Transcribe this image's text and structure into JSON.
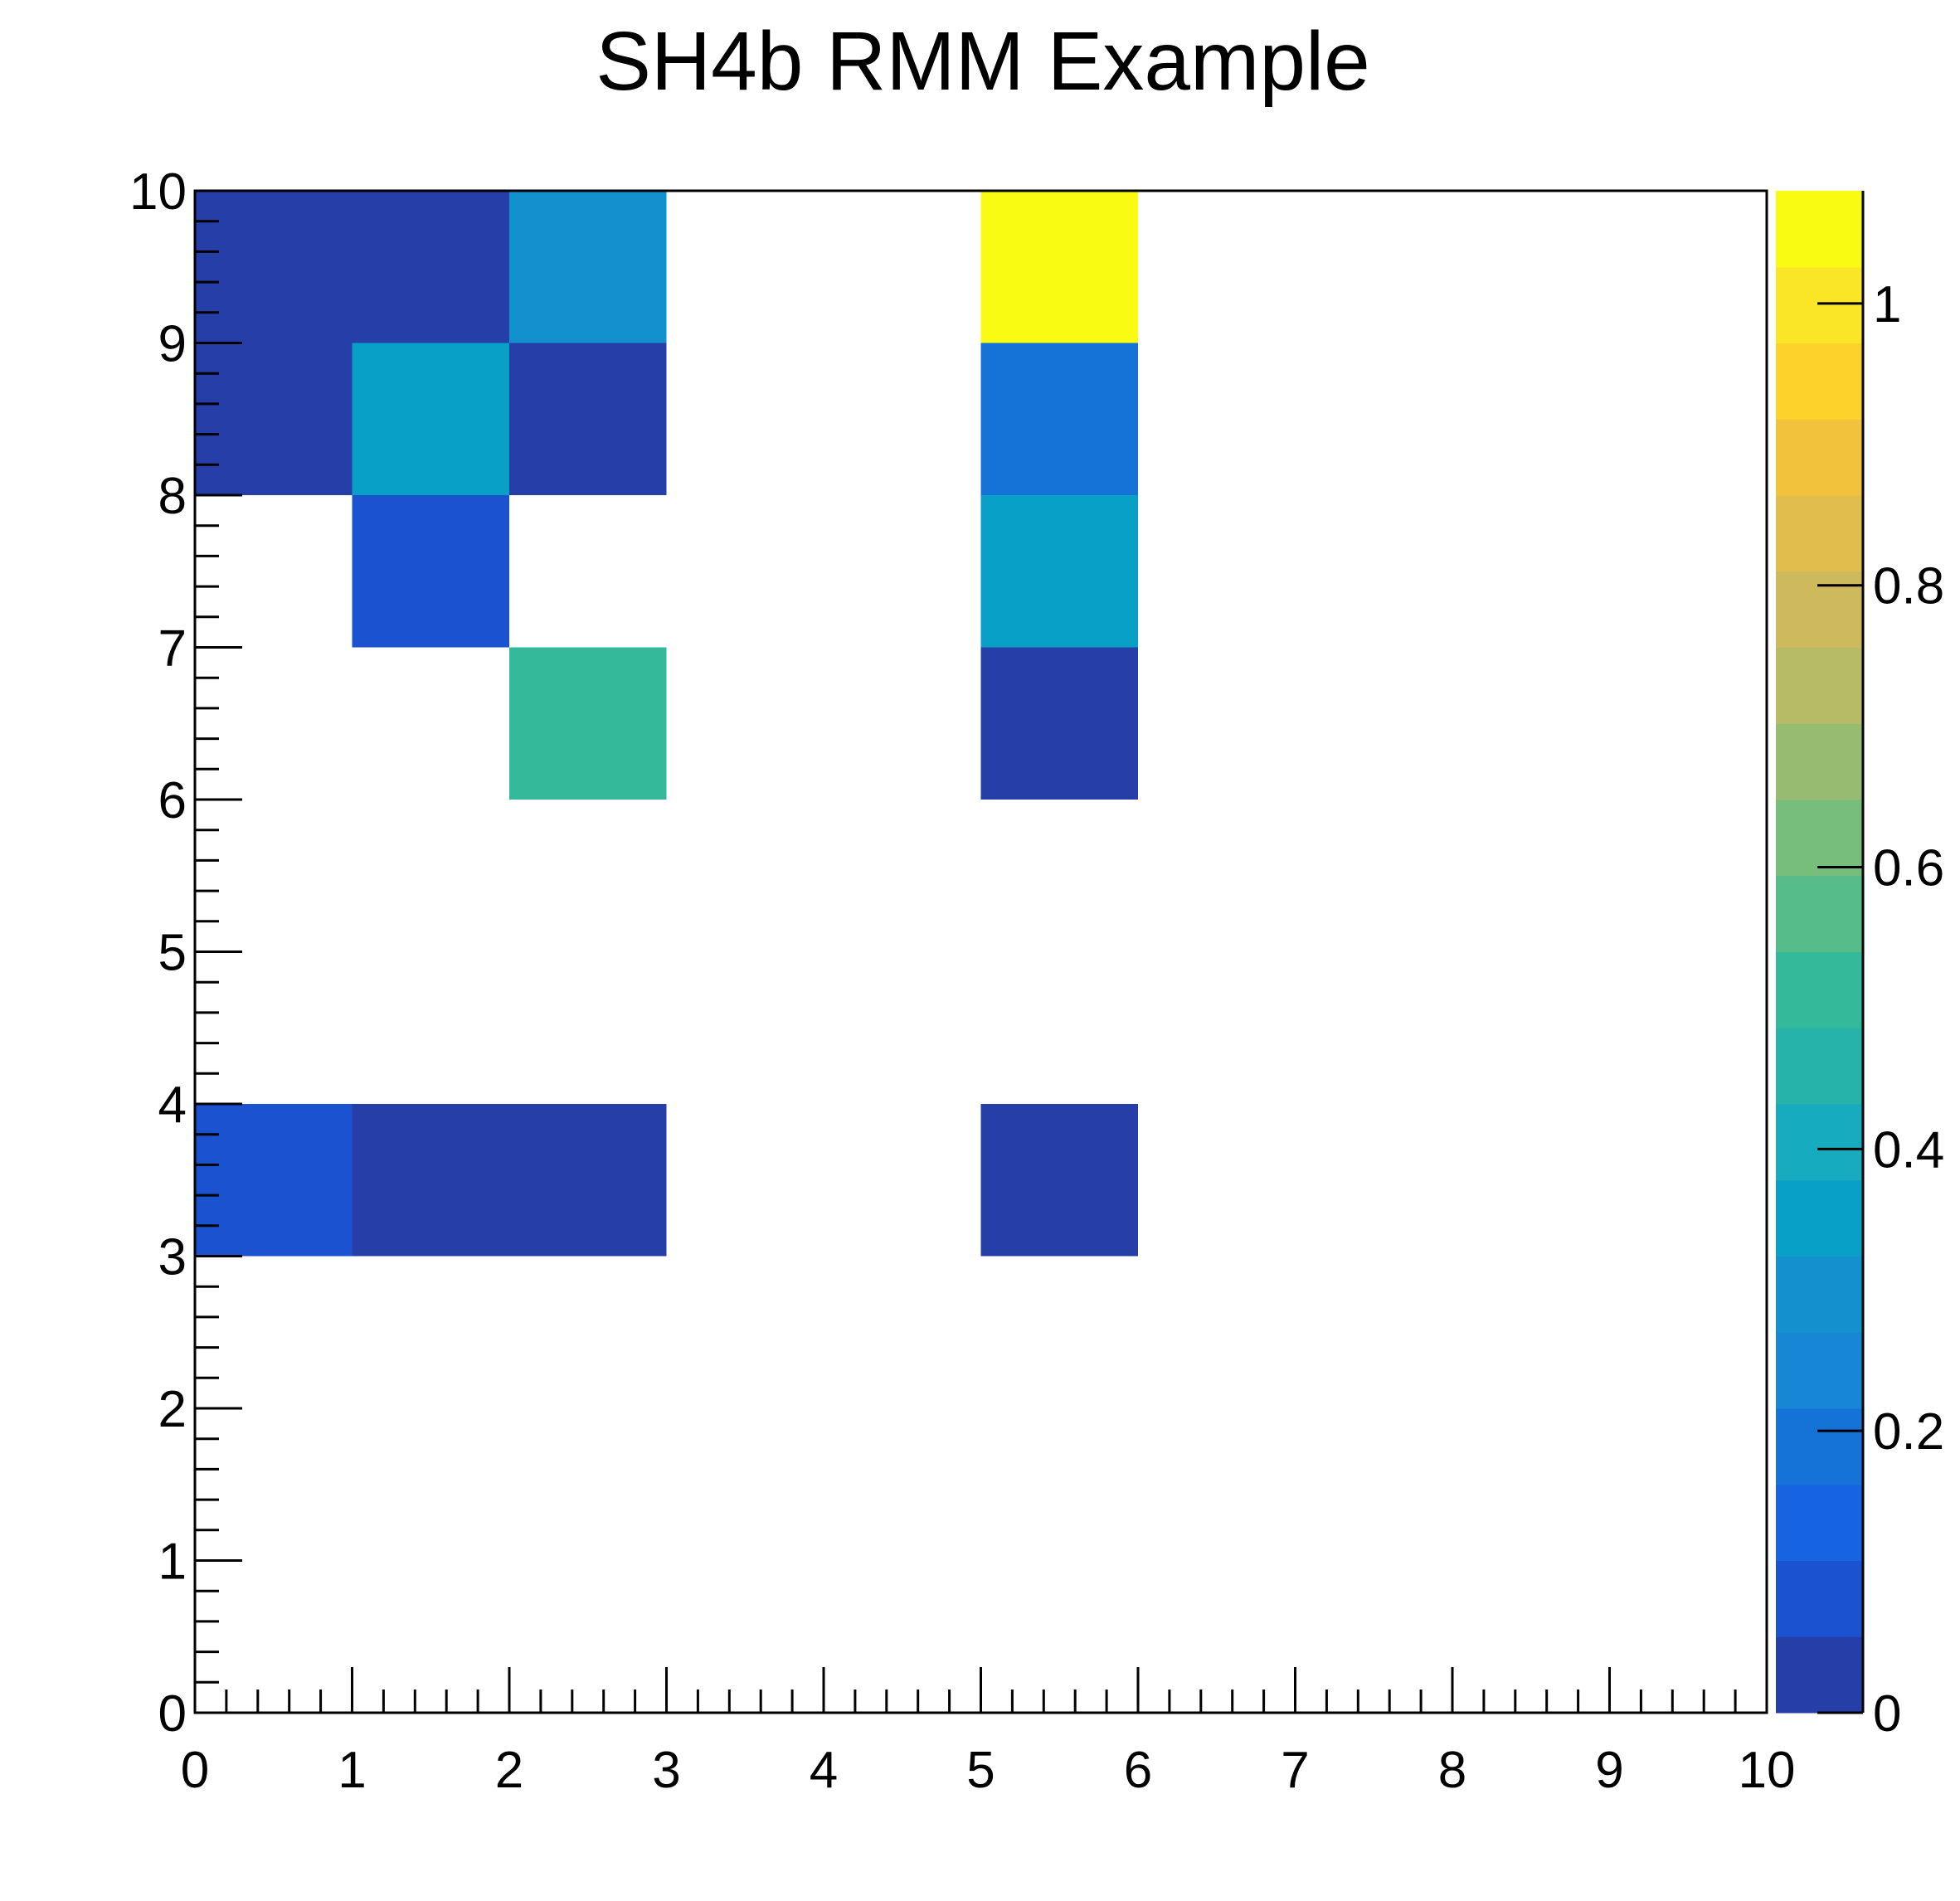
{
  "chart_data": {
    "type": "heatmap",
    "title": "SH4b RMM Example",
    "xlabel": "",
    "ylabel": "",
    "xlim": [
      0,
      10
    ],
    "ylim": [
      0,
      10
    ],
    "x_ticks": [
      "0",
      "1",
      "2",
      "3",
      "4",
      "5",
      "6",
      "7",
      "8",
      "9",
      "10"
    ],
    "y_ticks": [
      "0",
      "1",
      "2",
      "3",
      "4",
      "5",
      "6",
      "7",
      "8",
      "9",
      "10"
    ],
    "color_scale": {
      "min": 0,
      "max": 1.08,
      "tick_values": [
        0,
        0.2,
        0.4,
        0.6,
        0.8,
        1
      ],
      "tick_labels": [
        "0",
        "0.2",
        "0.4",
        "0.6",
        "0.8",
        "1"
      ],
      "palette": [
        "#263ea8",
        "#1a52d0",
        "#1664e2",
        "#1573d8",
        "#1786d4",
        "#1391cf",
        "#08a0c6",
        "#17abc0",
        "#25b3aa",
        "#34ba9a",
        "#55bc8a",
        "#77bd7c",
        "#97bc6f",
        "#b5bc65",
        "#cfb95d",
        "#e1bd4e",
        "#f2c23c",
        "#fdd22b",
        "#fae626",
        "#f9fb13"
      ]
    },
    "cells": [
      {
        "x": 0,
        "y": 9,
        "value": 0.0
      },
      {
        "x": 1,
        "y": 9,
        "value": 0.0
      },
      {
        "x": 2,
        "y": 9,
        "value": 0.31
      },
      {
        "x": 5,
        "y": 9,
        "value": 1.07
      },
      {
        "x": 0,
        "y": 8,
        "value": 0.0
      },
      {
        "x": 1,
        "y": 8,
        "value": 0.37
      },
      {
        "x": 2,
        "y": 8,
        "value": 0.0
      },
      {
        "x": 5,
        "y": 8,
        "value": 0.2
      },
      {
        "x": 1,
        "y": 7,
        "value": 0.07
      },
      {
        "x": 5,
        "y": 7,
        "value": 0.37
      },
      {
        "x": 2,
        "y": 6,
        "value": 0.52
      },
      {
        "x": 5,
        "y": 6,
        "value": 0.0
      },
      {
        "x": 0,
        "y": 3,
        "value": 0.07
      },
      {
        "x": 1,
        "y": 3,
        "value": 0.0
      },
      {
        "x": 2,
        "y": 3,
        "value": 0.0
      },
      {
        "x": 5,
        "y": 3,
        "value": 0.0
      }
    ]
  }
}
